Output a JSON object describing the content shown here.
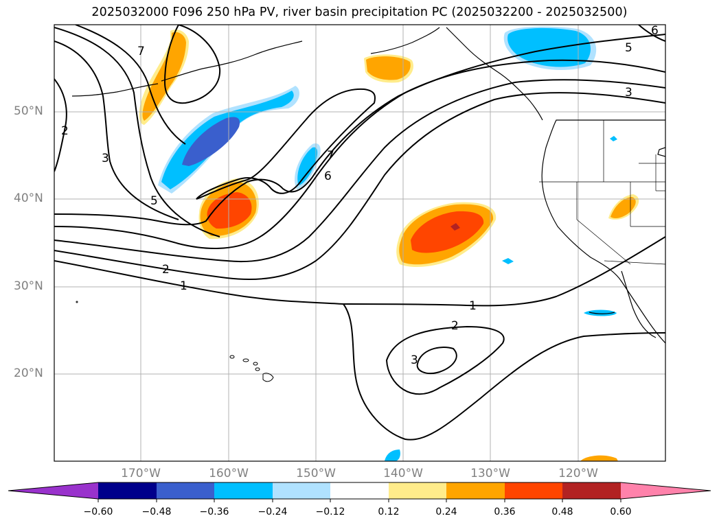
{
  "title": "2025032000 F096 250 hPa PV, river basin precipitation PC (2025032200 - 2025032500)",
  "lat_labels": [
    "50°N",
    "40°N",
    "30°N",
    "20°N"
  ],
  "lon_labels": [
    "170°W",
    "160°W",
    "150°W",
    "140°W",
    "130°W",
    "120°W"
  ],
  "colorbar": {
    "ticks": [
      "−0.60",
      "−0.48",
      "−0.36",
      "−0.24",
      "−0.12",
      "0.12",
      "0.24",
      "0.36",
      "0.48",
      "0.60"
    ],
    "colors": [
      "#9932cc",
      "#00008b",
      "#3a5fcd",
      "#00bfff",
      "#b0e2ff",
      "#ffffff",
      "#ffec8b",
      "#ffa500",
      "#ff4500",
      "#b22222",
      "#ff82ab"
    ]
  },
  "contour_labels": [
    "1",
    "2",
    "3",
    "5",
    "6",
    "7",
    "1",
    "2",
    "3",
    "2",
    "3",
    "5",
    "6",
    "7"
  ]
}
